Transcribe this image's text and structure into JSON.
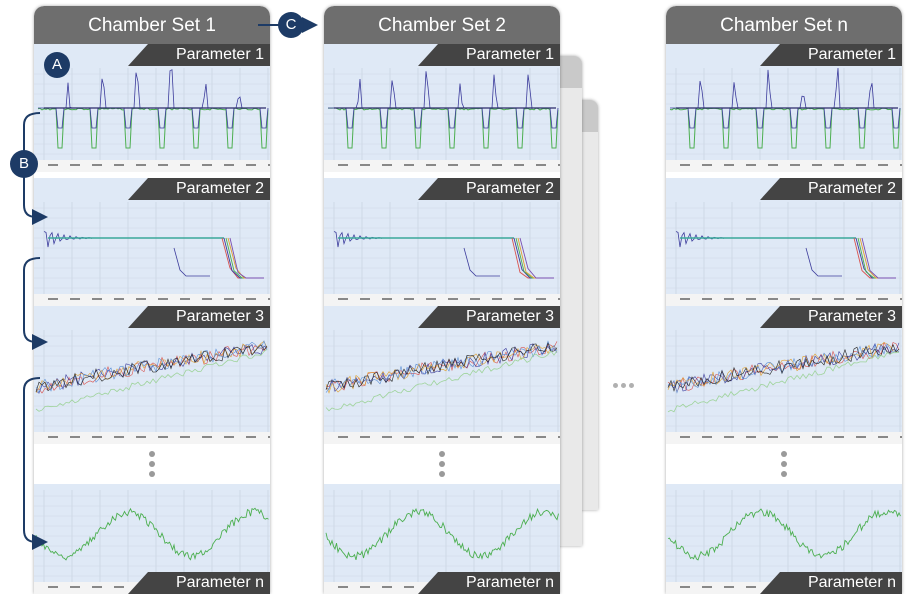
{
  "columns": [
    {
      "title": "Chamber Set 1",
      "params": [
        "Parameter 1",
        "Parameter 2",
        "Parameter 3",
        "Parameter n"
      ]
    },
    {
      "title": "Chamber Set 2",
      "params": [
        "Parameter 1",
        "Parameter 2",
        "Parameter 3",
        "Parameter n"
      ]
    },
    {
      "title": "Chamber Set n",
      "params": [
        "Parameter 1",
        "Parameter 2",
        "Parameter 3",
        "Parameter n"
      ]
    }
  ],
  "badges": {
    "a": "A",
    "b": "B",
    "c": "C"
  },
  "colors": {
    "header": "#6e6e6e",
    "label": "#444444",
    "badge": "#1d3b66",
    "series_blue": "#3c3c9c",
    "series_green": "#4caf50",
    "sky": "#dfe9f6"
  },
  "icons": {
    "ellipsis_vertical": "vertical-ellipsis-icon",
    "ellipsis_horizontal": "horizontal-ellipsis-icon"
  }
}
